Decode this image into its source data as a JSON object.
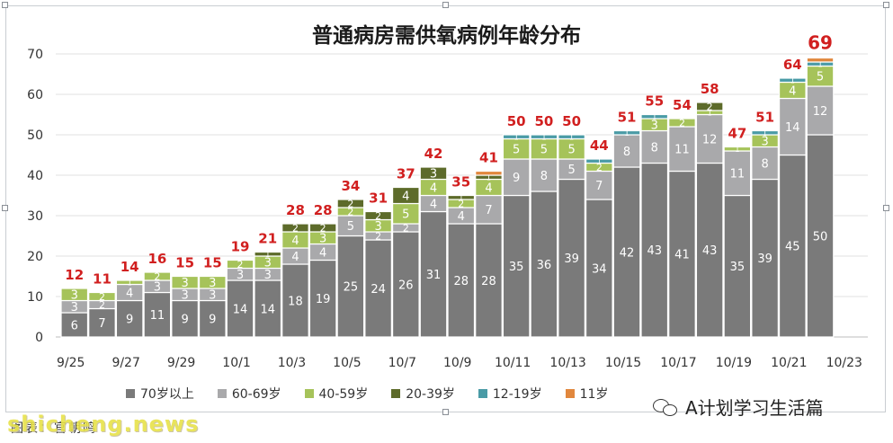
{
  "colors": {
    "age70": "#7a7a7a",
    "age60": "#a9a9ab",
    "age40": "#a6c35a",
    "age20": "#5d6b2a",
    "age12": "#4a9ba6",
    "age11": "#e1873d",
    "total": "#d11f1f",
    "grid": "#e0e0e0",
    "inner": "#ffffff"
  },
  "chart_data": {
    "type": "bar",
    "stacked": true,
    "title": "普通病房需供氧病例年龄分布",
    "categories": [
      "9/25",
      "9/26",
      "9/27",
      "9/28",
      "9/29",
      "9/30",
      "10/1",
      "10/2",
      "10/3",
      "10/4",
      "10/5",
      "10/6",
      "10/7",
      "10/8",
      "10/9",
      "10/10",
      "10/11",
      "10/12",
      "10/13",
      "10/14",
      "10/15",
      "10/16",
      "10/17",
      "10/18",
      "10/19",
      "10/20",
      "10/21",
      "10/22"
    ],
    "xtick_labels": [
      "9/25",
      "9/27",
      "9/29",
      "10/1",
      "10/3",
      "10/5",
      "10/7",
      "10/9",
      "10/11",
      "10/13",
      "10/15",
      "10/17",
      "10/19",
      "10/21",
      "10/23"
    ],
    "ylim": [
      0,
      70
    ],
    "yticks": [
      0,
      10,
      20,
      30,
      40,
      50,
      60,
      70
    ],
    "grid": true,
    "legend_position": "bottom",
    "series": [
      {
        "name": "70岁以上",
        "color_key": "age70",
        "values": [
          6,
          7,
          9,
          11,
          9,
          9,
          14,
          14,
          18,
          19,
          25,
          24,
          26,
          31,
          28,
          28,
          35,
          36,
          39,
          34,
          42,
          43,
          41,
          43,
          35,
          39,
          45,
          50
        ]
      },
      {
        "name": "60-69岁",
        "color_key": "age60",
        "values": [
          3,
          2,
          4,
          3,
          3,
          3,
          3,
          3,
          4,
          4,
          5,
          2,
          2,
          4,
          4,
          7,
          9,
          8,
          5,
          7,
          8,
          8,
          11,
          12,
          11,
          8,
          14,
          12
        ]
      },
      {
        "name": "40-59岁",
        "color_key": "age40",
        "values": [
          3,
          2,
          1,
          2,
          3,
          3,
          2,
          3,
          4,
          3,
          2,
          3,
          5,
          4,
          2,
          4,
          5,
          5,
          5,
          2,
          0,
          3,
          2,
          1,
          1,
          3,
          4,
          5
        ]
      },
      {
        "name": "20-39岁",
        "color_key": "age20",
        "values": [
          0,
          0,
          0,
          0,
          0,
          0,
          0,
          1,
          2,
          2,
          2,
          2,
          4,
          3,
          1,
          1,
          0,
          0,
          0,
          0,
          0,
          0,
          0,
          2,
          0,
          0,
          0,
          0
        ]
      },
      {
        "name": "12-19岁",
        "color_key": "age12",
        "values": [
          0,
          0,
          0,
          0,
          0,
          0,
          0,
          0,
          0,
          0,
          0,
          0,
          0,
          0,
          0,
          0,
          1,
          1,
          1,
          1,
          1,
          1,
          0,
          0,
          0,
          1,
          1,
          1
        ]
      },
      {
        "name": "11岁",
        "color_key": "age11",
        "values": [
          0,
          0,
          0,
          0,
          0,
          0,
          0,
          0,
          0,
          0,
          0,
          0,
          0,
          0,
          0,
          1,
          0,
          0,
          0,
          0,
          0,
          0,
          0,
          0,
          0,
          0,
          0,
          1
        ]
      }
    ],
    "totals": [
      12,
      11,
      14,
      16,
      15,
      15,
      19,
      21,
      28,
      28,
      34,
      31,
      37,
      42,
      35,
      41,
      50,
      50,
      50,
      44,
      51,
      55,
      54,
      58,
      47,
      51,
      64,
      69
    ]
  },
  "source_text": "图表：官朝鸣",
  "watermark_left": "shicheng.news",
  "watermark_right": "A计划学习生活篇"
}
